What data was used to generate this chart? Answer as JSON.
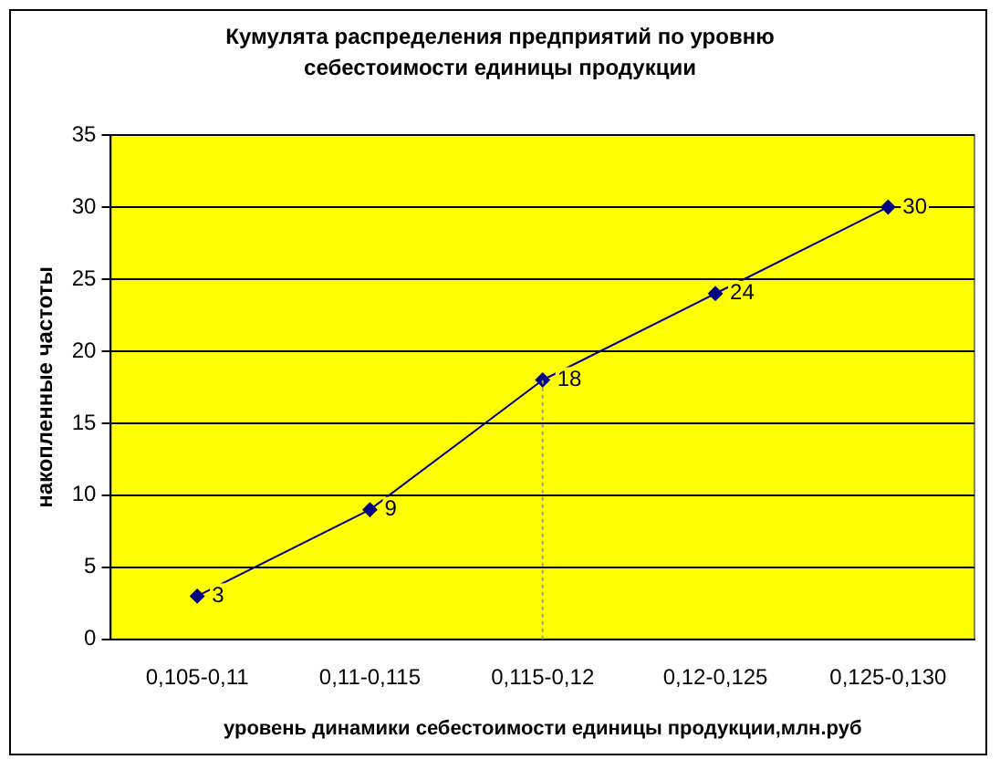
{
  "chart_data": {
    "type": "line",
    "title": "Кумулята распределения предприятий по уровню себестоимости единицы продукции",
    "xlabel": "уровень динамики себестоимости единицы продукции,млн.руб",
    "ylabel": "накопленные частоты",
    "categories": [
      "0,105-0,11",
      "0,11-0,115",
      "0,115-0,12",
      "0,12-0,125",
      "0,125-0,130"
    ],
    "series": [
      {
        "color": "#000080",
        "values": [
          3,
          9,
          18,
          24,
          30
        ]
      }
    ],
    "ylim": [
      0,
      35
    ],
    "yticks": [
      0,
      5,
      10,
      15,
      20,
      25,
      30,
      35
    ],
    "grid": "y",
    "legend": false,
    "marker": "diamond",
    "line_style": "solid",
    "data_labels": true,
    "ref_lines": [
      {
        "axis": "x",
        "value": "0,115-0,12",
        "color": "#a0a070",
        "line_style": "dotted"
      }
    ]
  }
}
